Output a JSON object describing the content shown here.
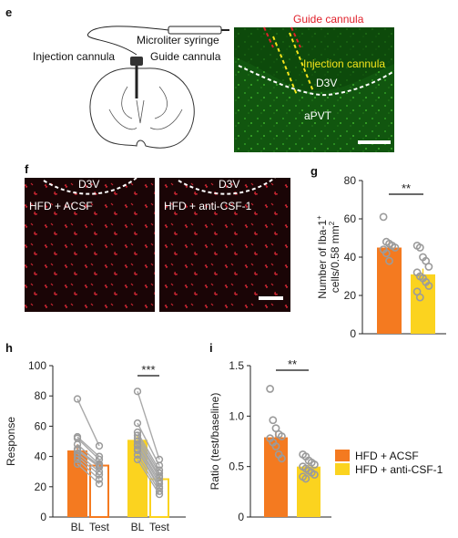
{
  "panels": {
    "e": {
      "letter": "e",
      "labels": {
        "syringe": "Microliter syringe",
        "injection_cannula": "Injection cannula",
        "guide_cannula": "Guide cannula"
      },
      "micro": {
        "guide": "Guide cannula",
        "injection": "Injection cannula",
        "d3v": "D3V",
        "apvt": "aPVT"
      }
    },
    "f": {
      "letter": "f",
      "left": {
        "d3v": "D3V",
        "condition": "HFD + ACSF"
      },
      "right": {
        "d3v": "D3V",
        "condition": "HFD + anti-CSF-1"
      }
    },
    "g": {
      "letter": "g"
    },
    "h": {
      "letter": "h"
    },
    "i": {
      "letter": "i"
    }
  },
  "legend": {
    "items": [
      "HFD + ACSF",
      "HFD + anti-CSF-1"
    ]
  },
  "colors": {
    "acsf": "#f47a20",
    "anti": "#fbd31f",
    "green": "#1b7d16",
    "red": "#e0202a",
    "yellow": "#f5e51b",
    "dot": "#9b9b9b",
    "line": "#a9a9a9"
  },
  "chart_data": [
    {
      "panel": "g",
      "type": "bar",
      "ylabel_line1": "Number of Iba-1",
      "ylabel_sup1": "+",
      "ylabel_line2": "cells/0.58 mm",
      "ylabel_sup2": "2",
      "ylim": [
        0,
        80
      ],
      "yticks": [
        0,
        20,
        40,
        60,
        80
      ],
      "significance": "**",
      "bars": [
        {
          "name": "HFD + ACSF",
          "mean": 45,
          "sem": 3,
          "points": [
            61,
            48,
            47,
            46,
            45,
            44,
            42,
            38
          ]
        },
        {
          "name": "HFD + anti-CSF-1",
          "mean": 31,
          "sem": 3,
          "points": [
            46,
            45,
            40,
            38,
            35,
            32,
            30,
            29,
            27,
            25,
            22,
            19
          ]
        }
      ]
    },
    {
      "panel": "h",
      "type": "bar",
      "ylabel": "Response",
      "ylim": [
        0,
        100
      ],
      "yticks": [
        0,
        20,
        40,
        60,
        80,
        100
      ],
      "categories": [
        "BL",
        "Test",
        "BL",
        "Test"
      ],
      "significance": "***",
      "groups": [
        {
          "name": "HFD + ACSF",
          "bl": 44,
          "test": 34,
          "bl_sem": 4,
          "test_sem": 3,
          "pairs": [
            [
              78,
              47
            ],
            [
              53,
              40
            ],
            [
              52,
              38
            ],
            [
              48,
              35
            ],
            [
              45,
              34
            ],
            [
              44,
              33
            ],
            [
              42,
              30
            ],
            [
              40,
              28
            ],
            [
              38,
              25
            ],
            [
              35,
              22
            ]
          ]
        },
        {
          "name": "HFD + anti-CSF-1",
          "bl": 51,
          "test": 25,
          "bl_sem": 3,
          "test_sem": 2,
          "pairs": [
            [
              83,
              38
            ],
            [
              62,
              34
            ],
            [
              56,
              31
            ],
            [
              54,
              29
            ],
            [
              52,
              27
            ],
            [
              50,
              26
            ],
            [
              48,
              24
            ],
            [
              47,
              22
            ],
            [
              45,
              20
            ],
            [
              44,
              19
            ],
            [
              41,
              17
            ],
            [
              38,
              15
            ]
          ]
        }
      ]
    },
    {
      "panel": "i",
      "type": "bar",
      "ylabel": "Ratio (test/baseline)",
      "ylim": [
        0,
        1.5
      ],
      "yticks": [
        "0",
        "0.5",
        "1.0",
        "1.5"
      ],
      "significance": "**",
      "bars": [
        {
          "name": "HFD + ACSF",
          "mean": 0.79,
          "sem": 0.06,
          "points": [
            1.27,
            0.96,
            0.88,
            0.82,
            0.8,
            0.78,
            0.74,
            0.7,
            0.62,
            0.58
          ]
        },
        {
          "name": "HFD + anti-CSF-1",
          "mean": 0.5,
          "sem": 0.04,
          "points": [
            0.62,
            0.6,
            0.56,
            0.54,
            0.52,
            0.5,
            0.48,
            0.46,
            0.44,
            0.42,
            0.4,
            0.38
          ]
        }
      ]
    }
  ]
}
